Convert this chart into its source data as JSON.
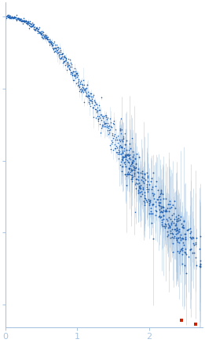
{
  "title": "",
  "xlabel": "",
  "ylabel": "",
  "xlim": [
    0.0,
    2.75
  ],
  "ylim": [
    -0.08,
    1.05
  ],
  "xticks": [
    0,
    1,
    2
  ],
  "bg_color": "#ffffff",
  "dot_color": "#2060b0",
  "error_color": "#a8c4e0",
  "outlier_color": "#cc2200",
  "axis_color": "#a8c4e0",
  "tick_color": "#a8c4e0",
  "label_color": "#7ca8d0",
  "n_smooth": 500,
  "n_scatter": 350,
  "seed": 17
}
